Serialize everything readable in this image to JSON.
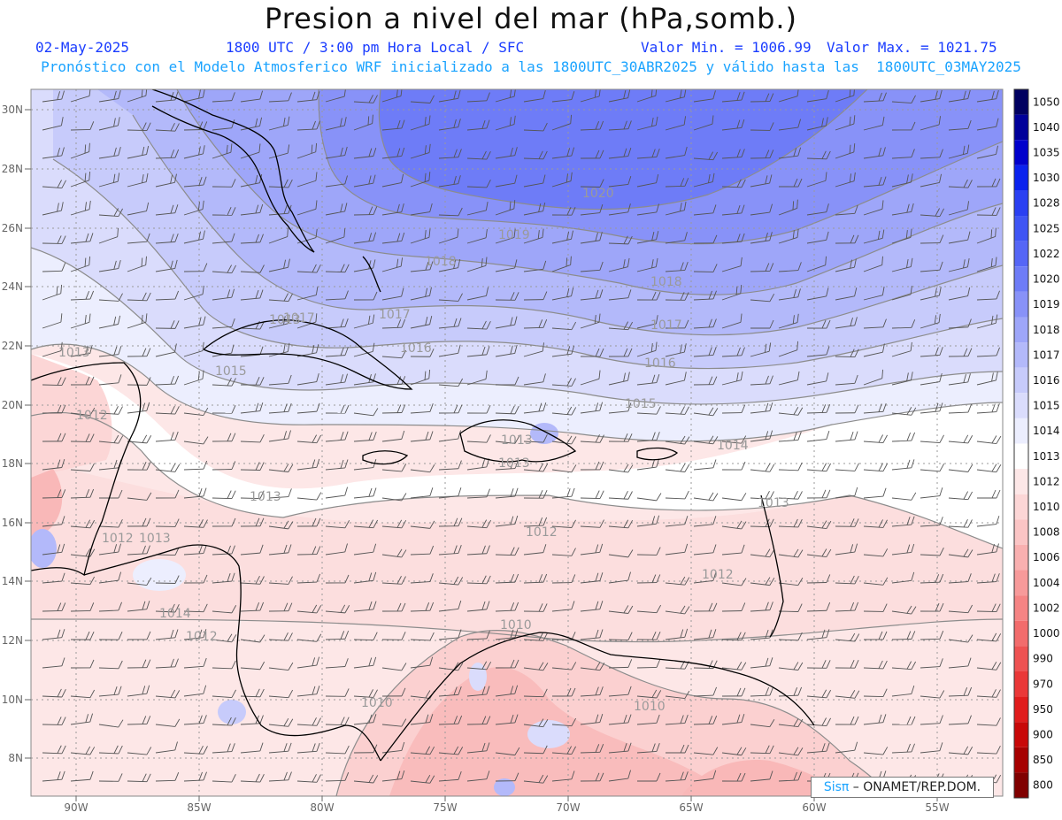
{
  "header": {
    "title": "Presion a nivel del mar (hPa,somb.)",
    "date": "02-May-2025",
    "time": "1800 UTC / 3:00 pm Hora Local / SFC",
    "min_label": "Valor Min. = 1006.99",
    "max_label": "Valor Max. = 1021.75",
    "forecast_line": "Pronóstico con el Modelo Atmosferico WRF inicializado a las 1800UTC_30ABR2025 y válido hasta las  1800UTC_03MAY2025"
  },
  "axes": {
    "lat_labels": [
      "30N",
      "28N",
      "26N",
      "24N",
      "22N",
      "20N",
      "18N",
      "16N",
      "14N",
      "12N",
      "10N",
      "8N"
    ],
    "lon_labels": [
      "90W",
      "85W",
      "80W",
      "75W",
      "70W",
      "65W",
      "60W",
      "55W"
    ]
  },
  "legend": {
    "levels": [
      "1050",
      "1040",
      "1035",
      "1030",
      "1028",
      "1025",
      "1022",
      "1020",
      "1019",
      "1018",
      "1017",
      "1016",
      "1015",
      "1014",
      "1013",
      "1012",
      "1010",
      "1008",
      "1006",
      "1004",
      "1002",
      "1000",
      "990",
      "970",
      "950",
      "900",
      "850",
      "800"
    ],
    "colors": [
      "#000060",
      "#00009a",
      "#0000cc",
      "#0a22ee",
      "#2a40f2",
      "#3f55f4",
      "#5566f6",
      "#6e7cf7",
      "#8892f8",
      "#9ea6f9",
      "#b3b9fa",
      "#c7cbfb",
      "#dadcfc",
      "#eceefe",
      "#ffffff",
      "#fde7e7",
      "#fcd6d6",
      "#fbc5c5",
      "#f9b0b0",
      "#f79a9a",
      "#f58484",
      "#f26c6c",
      "#ee5252",
      "#ea3838",
      "#e01c1c",
      "#c80808",
      "#a60000",
      "#800000"
    ]
  },
  "contour_labels": [
    "1020",
    "1019",
    "1018",
    "1018",
    "1017",
    "1017",
    "1016",
    "1016",
    "1015",
    "1015",
    "1014",
    "1013",
    "1013",
    "1013",
    "1012",
    "1012",
    "1012",
    "1012",
    "1013",
    "1014",
    "1012",
    "1010",
    "1010",
    "1010",
    "1013",
    "1013",
    "1013",
    "1017"
  ],
  "footer": {
    "brand": "Sisπ",
    "org": " – ONAMET/REP.DOM."
  },
  "colors": {
    "title": "#111111",
    "header_blue": "#1a3cff",
    "header_cyan": "#1aa3ff",
    "contour": "#8c8c8c",
    "coast": "#000000"
  }
}
